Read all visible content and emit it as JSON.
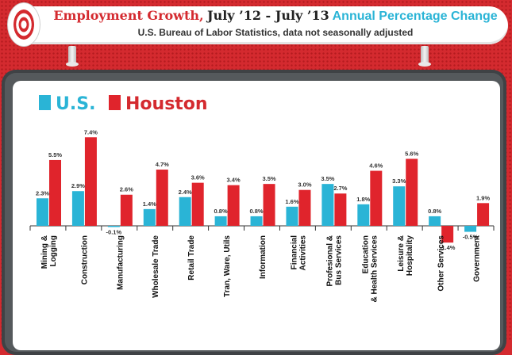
{
  "header": {
    "title_part1": "Employment Growth,",
    "title_part2": "July ’12 - July ’13",
    "title_part3": "Annual Percentage Change",
    "subtitle": "U.S. Bureau of Labor Statistics, data not seasonally adjusted"
  },
  "colors": {
    "us": "#2ab4d6",
    "houston": "#e0242c",
    "label_blue": "#2ab4d6",
    "label_red": "#d42a2f"
  },
  "chart_data": {
    "type": "bar",
    "title": "Employment Growth, July ’12 - July ’13 Annual Percentage Change",
    "subtitle": "U.S. Bureau of Labor Statistics, data not seasonally adjusted",
    "categories": [
      [
        "Mining &",
        "Logging"
      ],
      [
        "Construction"
      ],
      [
        "Manufacturing"
      ],
      [
        "Wholesale Trade"
      ],
      [
        "Retail Trade"
      ],
      [
        "Tran, Ware, Utils"
      ],
      [
        "Information"
      ],
      [
        "Financial",
        "Activities"
      ],
      [
        "Profesional &",
        "Bus Services"
      ],
      [
        "Education",
        "& Health Services"
      ],
      [
        "Leisure &",
        "Hospitality"
      ],
      [
        "Other Services"
      ],
      [
        "Government"
      ]
    ],
    "series": [
      {
        "name": "U.S.",
        "color": "#2ab4d6",
        "values": [
          2.3,
          2.9,
          -0.1,
          1.4,
          2.4,
          0.8,
          0.8,
          1.6,
          3.5,
          1.8,
          3.3,
          0.8,
          -0.5
        ],
        "labels": [
          "2.3%",
          "2.9%",
          "-0.1%",
          "1.4%",
          "2.4%",
          "0.8%",
          "0.8%",
          "1.6%",
          "3.5%",
          "1.8%",
          "3.3%",
          "0.8%",
          "-0.5%"
        ]
      },
      {
        "name": "Houston",
        "color": "#e0242c",
        "values": [
          5.5,
          7.4,
          2.6,
          4.7,
          3.6,
          3.4,
          3.5,
          3.0,
          2.7,
          4.6,
          5.6,
          -1.4,
          1.9
        ],
        "labels": [
          "5.5%",
          "7.4%",
          "2.6%",
          "4.7%",
          "3.6%",
          "3.4%",
          "3.5%",
          "3.0%",
          "2.7%",
          "4.6%",
          "5.6%",
          "-1.4%",
          "1.9%"
        ]
      }
    ],
    "legend_position": "top-left",
    "grid": false
  }
}
